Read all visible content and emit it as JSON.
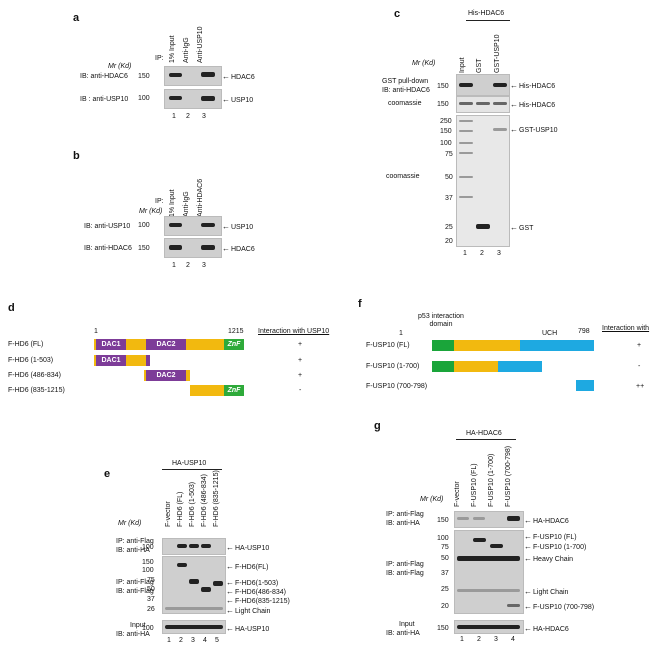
{
  "panels": {
    "a": {
      "letter": "a",
      "mr_label": "Mr (Kd)",
      "ip_label": "IP:",
      "lanes_header": [
        "1% Input",
        "Anti-IgG",
        "Anti-USP10"
      ],
      "ib1": "IB: anti-HDAC6",
      "mw1": "150",
      "arrow1": "HDAC6",
      "ib2": "IB : anti-USP10",
      "mw2": "100",
      "arrow2": "USP10",
      "lane_numbers": [
        "1",
        "2",
        "3"
      ]
    },
    "b": {
      "letter": "b",
      "ip_label": "IP:",
      "mr_label": "Mr (Kd)",
      "lanes_header": [
        "1% Input",
        "Anti-IgG",
        "Anti-HDAC6"
      ],
      "ib1": "IB: anti-USP10",
      "mw1": "100",
      "arrow1": "USP10",
      "ib2": "IB: anti-HDAC6",
      "mw2": "150",
      "arrow2": "HDAC6",
      "lane_numbers": [
        "1",
        "2",
        "3"
      ]
    },
    "c": {
      "letter": "c",
      "top_label": "His-HDAC6",
      "mr_label": "Mr (Kd)",
      "lanes_header": [
        "Input",
        "GST",
        "GST-USP10"
      ],
      "pulldown_label": "GST pull-down",
      "ib_label": "IB: anti-HDAC6",
      "mw_pull": "150",
      "arrow_pull": "His-HDAC6",
      "coom1_label": "coomassie",
      "mw_coom1": "150",
      "arrow_coom1": "His-HDAC6",
      "coom2_label": "coomassie",
      "mw_ladder": [
        "250",
        "150",
        "100",
        "75",
        "50",
        "37",
        "25",
        "20"
      ],
      "arrow_gstusp10": "GST-USP10",
      "arrow_gst": "GST",
      "lane_numbers": [
        "1",
        "2",
        "3"
      ]
    },
    "d": {
      "letter": "d",
      "start_label": "1",
      "end_label": "1215",
      "interaction_header": "Interaction with USP10",
      "domains": {
        "dac1": "DAC1",
        "dac2": "DAC2",
        "znf": "ZnF"
      },
      "constructs": [
        {
          "name": "F-HD6 (FL)",
          "result": "+"
        },
        {
          "name": "F-HD6 (1-503)",
          "result": "+"
        },
        {
          "name": "F-HD6 (486-834)",
          "result": "+"
        },
        {
          "name": "F-HD6 (835-1215)",
          "result": "-"
        }
      ],
      "colors": {
        "backbone": "#f2b90f",
        "dac": "#7d3c98",
        "znf": "#2eaa3a"
      }
    },
    "e": {
      "letter": "e",
      "top_label": "HA-USP10",
      "mr_label": "Mr (Kd)",
      "lanes_header": [
        "F-vector",
        "F-HD6 (FL)",
        "F-HD6 (1-503)",
        "F-HD6 (486-834)",
        "F-HD6 (835-1215)"
      ],
      "ip1": "IP: anti-Flag",
      "ib1": "IB: anti-HA",
      "mw1": "100",
      "arrow1": "HA-USP10",
      "ip2": "IP: anti-Flag",
      "ib2": "IB: anti-Flag",
      "mw2": [
        "150",
        "100",
        "75",
        "50",
        "37",
        "26"
      ],
      "arrows2": [
        "F-HD6(FL)",
        "F-HD6(1-503)",
        "F-HD6(486-834)",
        "F-HD6(835-1215)",
        "Light Chain"
      ],
      "input_label": "Input",
      "ib3": "IB: anti-HA",
      "mw3": "100",
      "arrow3": "HA-USP10",
      "lane_numbers": [
        "1",
        "2",
        "3",
        "4",
        "5"
      ]
    },
    "f": {
      "letter": "f",
      "p53_label": "p53 interaction domain",
      "uch_label": "UCH",
      "start_label": "1",
      "end_label": "798",
      "interaction_header": "Interaction with",
      "constructs": [
        {
          "name": "F-USP10 (FL)",
          "result": "+"
        },
        {
          "name": "F-USP10 (1-700)",
          "result": "-"
        },
        {
          "name": "F-USP10 (700-798)",
          "result": "++"
        }
      ],
      "colors": {
        "n": "#1aa53a",
        "p53": "#f2b90f",
        "uch": "#1ea9e1"
      }
    },
    "g": {
      "letter": "g",
      "top_label": "HA-HDAC6",
      "mr_label": "Mr (Kd)",
      "lanes_header": [
        "F-vector",
        "F-USP10 (FL)",
        "F-USP10 (1-700)",
        "F-USP10 (700-798)"
      ],
      "ip1": "IP: anti-Flag",
      "ib1": "IB: anti-HA",
      "mw1": "150",
      "arrow1": "HA-HDAC6",
      "ip2": "IP: anti-Flag",
      "ib2": "IB: anti-Flag",
      "mw2": [
        "100",
        "75",
        "50",
        "37",
        "25",
        "20"
      ],
      "arrows2": [
        "F-USP10 (FL)",
        "F-USP10 (1-700)",
        "Heavy Chain",
        "Light Chain",
        "F-USP10 (700-798)"
      ],
      "input_label": "Input",
      "ib3": "IB: anti-HA",
      "mw3": "150",
      "arrow3": "HA-HDAC6",
      "lane_numbers": [
        "1",
        "2",
        "3",
        "4"
      ]
    }
  }
}
